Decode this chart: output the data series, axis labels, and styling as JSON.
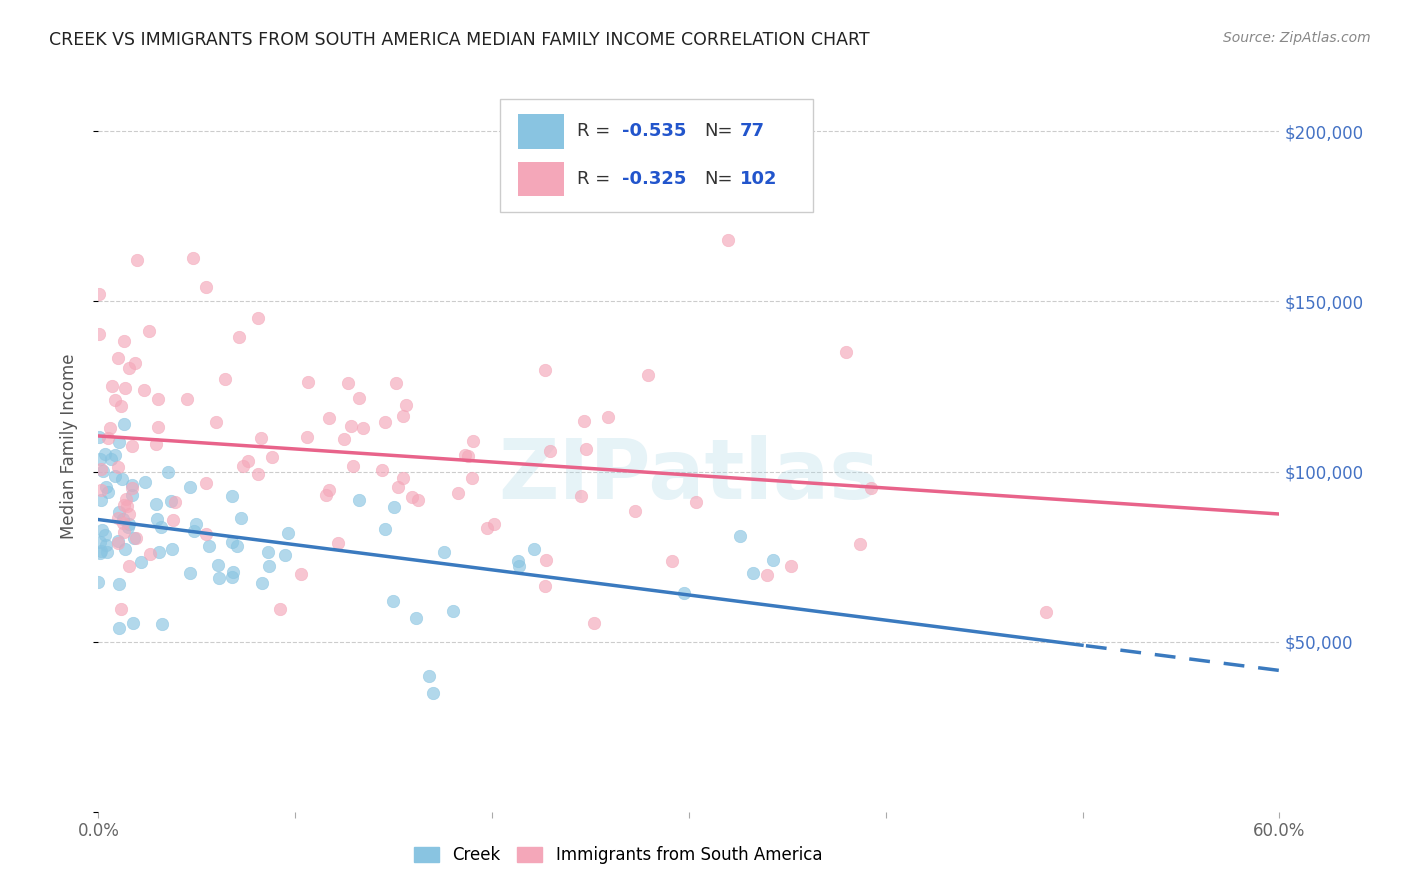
{
  "title": "CREEK VS IMMIGRANTS FROM SOUTH AMERICA MEDIAN FAMILY INCOME CORRELATION CHART",
  "source": "Source: ZipAtlas.com",
  "ylabel": "Median Family Income",
  "xlim": [
    0,
    0.6
  ],
  "ylim": [
    0,
    215000
  ],
  "creek_color": "#89c4e1",
  "sa_color": "#f4a7b9",
  "creek_line_color": "#3a7abf",
  "sa_line_color": "#e8638a",
  "creek_r": -0.535,
  "creek_n": 77,
  "sa_r": -0.325,
  "sa_n": 102,
  "watermark": "ZIPatlas",
  "background_color": "#ffffff",
  "grid_color": "#cccccc",
  "creek_intercept": 82000,
  "creek_slope": -100000,
  "sa_intercept": 110000,
  "sa_slope": -55000
}
